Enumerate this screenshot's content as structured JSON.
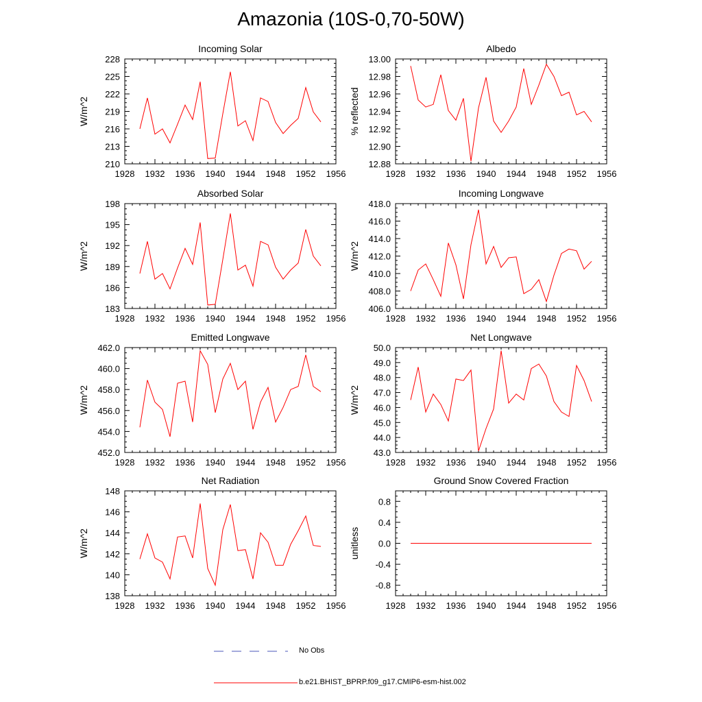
{
  "title": "Amazonia (10S-0,70-50W)",
  "series_color": "#ff0000",
  "legend": [
    {
      "label": "No Obs",
      "color": "#4a56b8",
      "style": "dashed"
    },
    {
      "label": "b.e21.BHIST_BPRP.f09_g17.CMIP6-esm-hist.002",
      "color": "#ff0000",
      "style": "solid"
    }
  ],
  "chart_data": [
    {
      "type": "line",
      "title": "Incoming Solar",
      "ylabel": "W/m^2",
      "x": [
        1930,
        1931,
        1932,
        1933,
        1934,
        1935,
        1936,
        1937,
        1938,
        1939,
        1940,
        1941,
        1942,
        1943,
        1944,
        1945,
        1946,
        1947,
        1948,
        1949,
        1950,
        1951,
        1952,
        1953,
        1954
      ],
      "values": [
        216.0,
        221.3,
        215.1,
        216.0,
        213.6,
        216.8,
        220.1,
        217.6,
        224.1,
        210.9,
        211.0,
        218.6,
        225.8,
        216.5,
        217.4,
        214.0,
        221.3,
        220.7,
        217.1,
        215.2,
        216.6,
        217.8,
        223.1,
        218.9,
        217.2
      ],
      "xlim": [
        1928,
        1956
      ],
      "ylim": [
        210,
        228
      ],
      "xticks": [
        "1928",
        "1932",
        "1936",
        "1940",
        "1944",
        "1948",
        "1952",
        "1956"
      ],
      "yticks": [
        "210",
        "213",
        "216",
        "219",
        "222",
        "225",
        "228"
      ]
    },
    {
      "type": "line",
      "title": "Albedo",
      "ylabel": "% reflected",
      "x": [
        1930,
        1931,
        1932,
        1933,
        1934,
        1935,
        1936,
        1937,
        1938,
        1939,
        1940,
        1941,
        1942,
        1943,
        1944,
        1945,
        1946,
        1947,
        1948,
        1949,
        1950,
        1951,
        1952,
        1953,
        1954
      ],
      "values": [
        12.992,
        12.953,
        12.945,
        12.948,
        12.982,
        12.941,
        12.93,
        12.955,
        12.883,
        12.944,
        12.979,
        12.929,
        12.916,
        12.929,
        12.945,
        12.989,
        12.948,
        12.97,
        12.994,
        12.98,
        12.958,
        12.962,
        12.936,
        12.94,
        12.928
      ],
      "xlim": [
        1928,
        1956
      ],
      "ylim": [
        12.88,
        13.0
      ],
      "xticks": [
        "1928",
        "1932",
        "1936",
        "1940",
        "1944",
        "1948",
        "1952",
        "1956"
      ],
      "yticks": [
        "12.88",
        "12.90",
        "12.92",
        "12.94",
        "12.96",
        "12.98",
        "13.00"
      ]
    },
    {
      "type": "line",
      "title": "Absorbed Solar",
      "ylabel": "W/m^2",
      "x": [
        1930,
        1931,
        1932,
        1933,
        1934,
        1935,
        1936,
        1937,
        1938,
        1939,
        1940,
        1941,
        1942,
        1943,
        1944,
        1945,
        1946,
        1947,
        1948,
        1949,
        1950,
        1951,
        1952,
        1953,
        1954
      ],
      "values": [
        188.0,
        192.6,
        187.2,
        188.0,
        185.8,
        188.8,
        191.6,
        189.3,
        195.3,
        183.5,
        183.6,
        190.0,
        196.6,
        188.5,
        189.2,
        186.2,
        192.6,
        192.1,
        188.9,
        187.2,
        188.5,
        189.5,
        194.3,
        190.5,
        189.1
      ],
      "xlim": [
        1928,
        1956
      ],
      "ylim": [
        183,
        198
      ],
      "xticks": [
        "1928",
        "1932",
        "1936",
        "1940",
        "1944",
        "1948",
        "1952",
        "1956"
      ],
      "yticks": [
        "183",
        "186",
        "189",
        "192",
        "195",
        "198"
      ]
    },
    {
      "type": "line",
      "title": "Incoming Longwave",
      "ylabel": "W/m^2",
      "x": [
        1930,
        1931,
        1932,
        1933,
        1934,
        1935,
        1936,
        1937,
        1938,
        1939,
        1940,
        1941,
        1942,
        1943,
        1944,
        1945,
        1946,
        1947,
        1948,
        1949,
        1950,
        1951,
        1952,
        1953,
        1954
      ],
      "values": [
        408.0,
        410.4,
        411.1,
        409.3,
        407.4,
        413.5,
        411.0,
        407.1,
        413.3,
        417.3,
        411.1,
        413.1,
        410.7,
        411.8,
        411.9,
        407.7,
        408.2,
        409.3,
        406.8,
        409.8,
        412.3,
        412.8,
        412.6,
        410.5,
        411.4
      ],
      "xlim": [
        1928,
        1956
      ],
      "ylim": [
        406,
        418
      ],
      "xticks": [
        "1928",
        "1932",
        "1936",
        "1940",
        "1944",
        "1948",
        "1952",
        "1956"
      ],
      "yticks": [
        "406.0",
        "408.0",
        "410.0",
        "412.0",
        "414.0",
        "416.0",
        "418.0"
      ]
    },
    {
      "type": "line",
      "title": "Emitted Longwave",
      "ylabel": "W/m^2",
      "x": [
        1930,
        1931,
        1932,
        1933,
        1934,
        1935,
        1936,
        1937,
        1938,
        1939,
        1940,
        1941,
        1942,
        1943,
        1944,
        1945,
        1946,
        1947,
        1948,
        1949,
        1950,
        1951,
        1952,
        1953,
        1954
      ],
      "values": [
        454.4,
        458.9,
        456.8,
        456.1,
        453.5,
        458.6,
        458.8,
        454.9,
        461.7,
        460.4,
        455.8,
        459.0,
        460.5,
        458.0,
        458.8,
        454.2,
        456.8,
        458.2,
        454.9,
        456.3,
        458.0,
        458.3,
        461.3,
        458.3,
        457.8
      ],
      "xlim": [
        1928,
        1956
      ],
      "ylim": [
        452,
        462
      ],
      "xticks": [
        "1928",
        "1932",
        "1936",
        "1940",
        "1944",
        "1948",
        "1952",
        "1956"
      ],
      "yticks": [
        "452.0",
        "454.0",
        "456.0",
        "458.0",
        "460.0",
        "462.0"
      ]
    },
    {
      "type": "line",
      "title": "Net Longwave",
      "ylabel": "W/m^2",
      "x": [
        1930,
        1931,
        1932,
        1933,
        1934,
        1935,
        1936,
        1937,
        1938,
        1939,
        1940,
        1941,
        1942,
        1943,
        1944,
        1945,
        1946,
        1947,
        1948,
        1949,
        1950,
        1951,
        1952,
        1953,
        1954
      ],
      "values": [
        46.5,
        48.7,
        45.7,
        46.9,
        46.2,
        45.1,
        47.9,
        47.8,
        48.5,
        43.1,
        44.6,
        45.9,
        49.8,
        46.3,
        46.9,
        46.5,
        48.6,
        48.9,
        48.1,
        46.4,
        45.7,
        45.4,
        48.8,
        47.8,
        46.4
      ],
      "xlim": [
        1928,
        1956
      ],
      "ylim": [
        43,
        50
      ],
      "xticks": [
        "1928",
        "1932",
        "1936",
        "1940",
        "1944",
        "1948",
        "1952",
        "1956"
      ],
      "yticks": [
        "43.0",
        "44.0",
        "45.0",
        "46.0",
        "47.0",
        "48.0",
        "49.0",
        "50.0"
      ]
    },
    {
      "type": "line",
      "title": "Net Radiation",
      "ylabel": "W/m^2",
      "x": [
        1930,
        1931,
        1932,
        1933,
        1934,
        1935,
        1936,
        1937,
        1938,
        1939,
        1940,
        1941,
        1942,
        1943,
        1944,
        1945,
        1946,
        1947,
        1948,
        1949,
        1950,
        1951,
        1952,
        1953,
        1954
      ],
      "values": [
        141.5,
        143.9,
        141.6,
        141.2,
        139.6,
        143.6,
        143.7,
        141.6,
        146.8,
        140.6,
        139.0,
        144.3,
        146.7,
        142.3,
        142.4,
        139.6,
        144.0,
        143.1,
        140.9,
        140.9,
        142.9,
        144.2,
        145.6,
        142.8,
        142.7
      ],
      "xlim": [
        1928,
        1956
      ],
      "ylim": [
        138,
        148
      ],
      "xticks": [
        "1928",
        "1932",
        "1936",
        "1940",
        "1944",
        "1948",
        "1952",
        "1956"
      ],
      "yticks": [
        "138",
        "140",
        "142",
        "144",
        "146",
        "148"
      ]
    },
    {
      "type": "line",
      "title": "Ground Snow Covered Fraction",
      "ylabel": "unitless",
      "x": [
        1930,
        1931,
        1932,
        1933,
        1934,
        1935,
        1936,
        1937,
        1938,
        1939,
        1940,
        1941,
        1942,
        1943,
        1944,
        1945,
        1946,
        1947,
        1948,
        1949,
        1950,
        1951,
        1952,
        1953,
        1954
      ],
      "values": [
        0,
        0,
        0,
        0,
        0,
        0,
        0,
        0,
        0,
        0,
        0,
        0,
        0,
        0,
        0,
        0,
        0,
        0,
        0,
        0,
        0,
        0,
        0,
        0,
        0
      ],
      "xlim": [
        1928,
        1956
      ],
      "ylim": [
        -1.0,
        1.0
      ],
      "xticks": [
        "1928",
        "1932",
        "1936",
        "1940",
        "1944",
        "1948",
        "1952",
        "1956"
      ],
      "yticks": [
        "-0.8",
        "-0.4",
        "0.0",
        "0.4",
        "0.8"
      ]
    }
  ]
}
